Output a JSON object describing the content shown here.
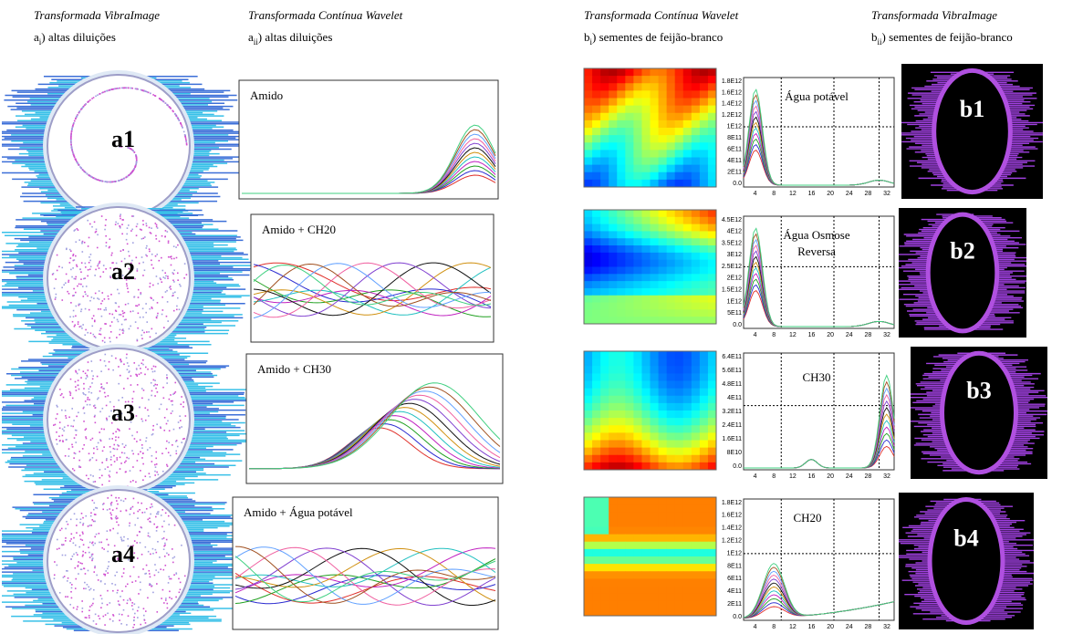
{
  "headers": [
    {
      "title": "Transformada VibraImage",
      "prefix": "a",
      "sub": "i",
      "text": ") altas diluições"
    },
    {
      "title": "Transformada Contínua Wavelet",
      "prefix": "a",
      "sub": "ii",
      "text": ") altas diluições"
    },
    {
      "title": "Transformada Contínua Wavelet",
      "prefix": "b",
      "sub": "i",
      "text": ") sementes de feijão-branco"
    },
    {
      "title": "Transformada VibraImage",
      "prefix": "b",
      "sub": "ii",
      "text": ") sementes de feijão-branco"
    }
  ],
  "a_panels": [
    {
      "label": "a1",
      "chart_title": "Amido"
    },
    {
      "label": "a2",
      "chart_title": "Amido + CH20"
    },
    {
      "label": "a3",
      "chart_title": "Amido + CH30"
    },
    {
      "label": "a4",
      "chart_title": "Amido + Água potável"
    }
  ],
  "b_panels": [
    {
      "label": "b1",
      "annotation": [
        "Água potável"
      ],
      "yticks": [
        "1.8E12",
        "1.6E12",
        "1.4E12",
        "1.2E12",
        "1E12",
        "8E11",
        "6E11",
        "4E11",
        "2E11",
        "0.0"
      ]
    },
    {
      "label": "b2",
      "annotation": [
        "Água Osmose",
        "Reversa"
      ],
      "yticks": [
        "4.5E12",
        "4E12",
        "3.5E12",
        "3E12",
        "2.5E12",
        "2E12",
        "1.5E12",
        "1E12",
        "5E11",
        "0.0"
      ]
    },
    {
      "label": "b3",
      "annotation": [
        "CH30"
      ],
      "yticks": [
        "6.4E11",
        "5.6E11",
        "4.8E11",
        "4E11",
        "3.2E11",
        "2.4E11",
        "1.6E11",
        "8E10",
        "0.0"
      ]
    },
    {
      "label": "b4",
      "annotation": [
        "CH20"
      ],
      "yticks": [
        "1.8E12",
        "1.6E12",
        "1.4E12",
        "1.2E12",
        "1E12",
        "8E11",
        "6E11",
        "4E11",
        "2E11",
        "0.0"
      ]
    }
  ],
  "x_ticks": [
    "4",
    "8",
    "12",
    "16",
    "20",
    "24",
    "28",
    "32"
  ]
}
